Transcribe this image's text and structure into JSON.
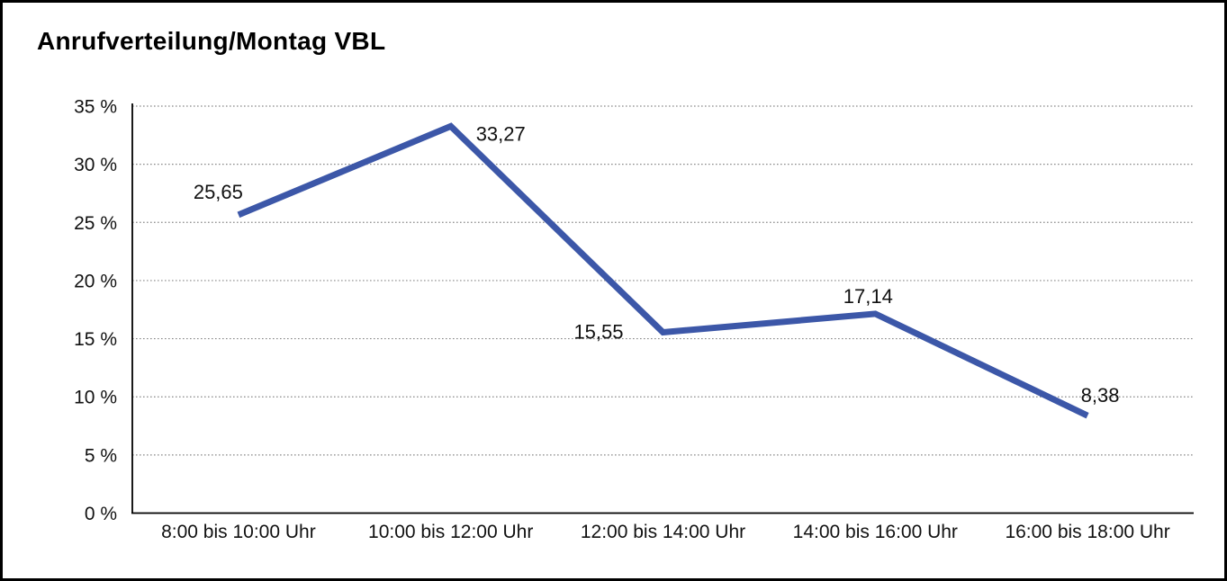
{
  "window": {
    "background": "#ffffff",
    "border_color": "#000000"
  },
  "header": {
    "title": "Anrufverteilung/Montag VBL"
  },
  "chart_data": {
    "type": "line",
    "title": "Anrufverteilung/Montag VBL",
    "categories": [
      "8:00 bis 10:00 Uhr",
      "10:00 bis 12:00 Uhr",
      "12:00 bis 14:00 Uhr",
      "14:00 bis 16:00 Uhr",
      "16:00 bis 18:00 Uhr"
    ],
    "values": [
      25.65,
      33.27,
      15.55,
      17.14,
      8.38
    ],
    "point_labels": [
      "25,65",
      "33,27",
      "15,55",
      "17,14",
      "8,38"
    ],
    "xlabel": "",
    "ylabel": "",
    "ylim": [
      0,
      35
    ],
    "y_tick_values": [
      0,
      5,
      10,
      15,
      20,
      25,
      30,
      35
    ],
    "y_tick_labels": [
      "0 %",
      "5 %",
      "10 %",
      "15 %",
      "20 %",
      "25 %",
      "30 %",
      "35 %"
    ],
    "grid": "horizontal-dotted",
    "legend_position": "none",
    "markers": "none",
    "line_color": "#3C57A8",
    "grid_color": "#8a8a8a",
    "axis_color": "#000000",
    "text_color": "#111111"
  }
}
